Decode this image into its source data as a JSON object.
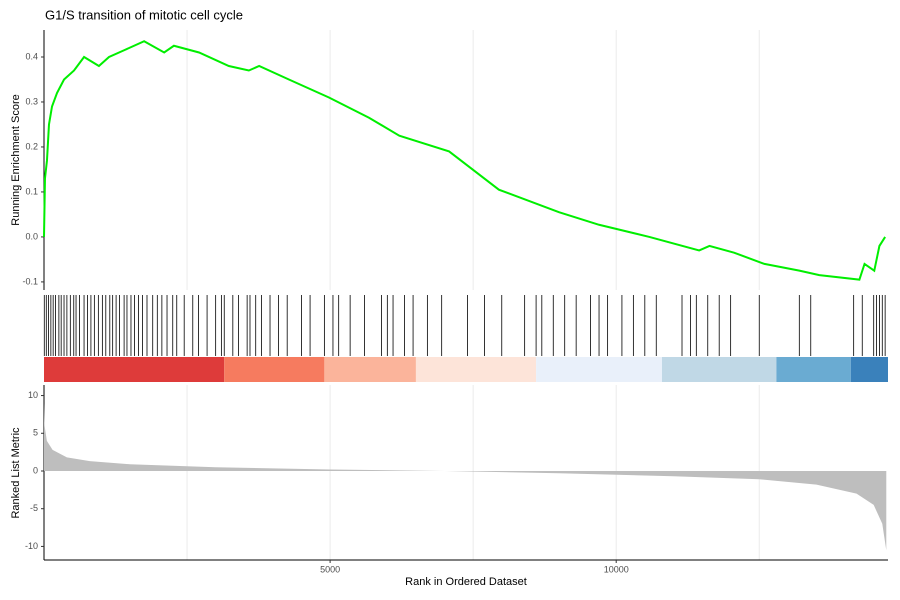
{
  "chart_data": [
    {
      "type": "line",
      "title": "G1/S transition of mitotic cell cycle",
      "ylabel": "Running Enrichment Score",
      "color": "#00ee00",
      "x": [
        0,
        17,
        52,
        87,
        140,
        227,
        350,
        525,
        700,
        960,
        1136,
        1400,
        1750,
        2100,
        2270,
        2710,
        3230,
        3580,
        3760,
        4280,
        4980,
        5680,
        6210,
        7080,
        7950,
        9000,
        9700,
        10580,
        11450,
        11630,
        12060,
        12590,
        13200,
        13550,
        14250,
        14340,
        14510,
        14600,
        14700
      ],
      "values": [
        0.0,
        0.13,
        0.17,
        0.25,
        0.29,
        0.32,
        0.35,
        0.37,
        0.4,
        0.38,
        0.4,
        0.415,
        0.435,
        0.41,
        0.425,
        0.41,
        0.38,
        0.37,
        0.38,
        0.35,
        0.31,
        0.265,
        0.225,
        0.19,
        0.105,
        0.055,
        0.027,
        0.0,
        -0.03,
        -0.02,
        -0.035,
        -0.06,
        -0.075,
        -0.085,
        -0.095,
        -0.06,
        -0.075,
        -0.02,
        0.0
      ],
      "xlim": [
        0,
        14750
      ],
      "ylim": [
        -0.118,
        0.46
      ],
      "yticks": [
        -0.1,
        {
          "value": 0,
          "label": "0.0"
        },
        0.1,
        0.2,
        0.3,
        0.4
      ],
      "xgrid": [
        2500,
        5000,
        7500,
        10000,
        12500
      ]
    },
    {
      "type": "rug",
      "xlim": [
        0,
        14750
      ],
      "color": "#000000",
      "hits": [
        5,
        40,
        80,
        120,
        160,
        200,
        260,
        300,
        350,
        400,
        460,
        520,
        560,
        620,
        700,
        760,
        820,
        880,
        950,
        1020,
        1080,
        1150,
        1200,
        1260,
        1320,
        1400,
        1450,
        1520,
        1580,
        1650,
        1720,
        1800,
        1900,
        1980,
        2060,
        2150,
        2250,
        2320,
        2450,
        2600,
        2700,
        2850,
        3000,
        3100,
        3150,
        3300,
        3400,
        3550,
        3600,
        3700,
        3800,
        3950,
        4100,
        4250,
        4500,
        4650,
        4900,
        5050,
        5150,
        5350,
        5600,
        5900,
        6000,
        6100,
        6300,
        6450,
        6700,
        6950,
        7400,
        7700,
        8000,
        8400,
        8600,
        8700,
        8900,
        9100,
        9300,
        9550,
        9700,
        9850,
        10100,
        10300,
        10500,
        10700,
        11150,
        11300,
        11400,
        11600,
        11800,
        12000,
        12500,
        13200,
        13400,
        14150,
        14300,
        14500,
        14550,
        14600,
        14650,
        14700
      ],
      "color_bar": [
        {
          "start": 0,
          "end": 3150,
          "color": "#de3b3a"
        },
        {
          "start": 3150,
          "end": 4900,
          "color": "#f67b5f"
        },
        {
          "start": 4900,
          "end": 6500,
          "color": "#fbb49b"
        },
        {
          "start": 6500,
          "end": 8600,
          "color": "#fde4d9"
        },
        {
          "start": 8600,
          "end": 10800,
          "color": "#e9f0fa"
        },
        {
          "start": 10800,
          "end": 12800,
          "color": "#c0d8e6"
        },
        {
          "start": 12800,
          "end": 14100,
          "color": "#6aabd2"
        },
        {
          "start": 14100,
          "end": 14750,
          "color": "#3a81bb"
        }
      ]
    },
    {
      "type": "area",
      "ylabel": "Ranked List Metric",
      "xlabel": "Rank in Ordered Dataset",
      "color": "#bebebe",
      "x": [
        0,
        10,
        50,
        150,
        400,
        800,
        1500,
        3000,
        5000,
        7000,
        9000,
        11000,
        12500,
        13500,
        14200,
        14500,
        14650,
        14720
      ],
      "values": [
        9,
        6,
        4,
        2.8,
        1.8,
        1.3,
        0.9,
        0.5,
        0.2,
        0.0,
        -0.3,
        -0.7,
        -1.1,
        -1.8,
        -3,
        -4.5,
        -7,
        -10.5
      ],
      "xlim": [
        0,
        14750
      ],
      "ylim": [
        -11.8,
        11.4
      ],
      "yticks": [
        -10,
        -5,
        0,
        5,
        10
      ],
      "xticks": [
        5000,
        10000
      ],
      "xgrid": [
        2500,
        5000,
        7500,
        10000,
        12500
      ]
    }
  ]
}
